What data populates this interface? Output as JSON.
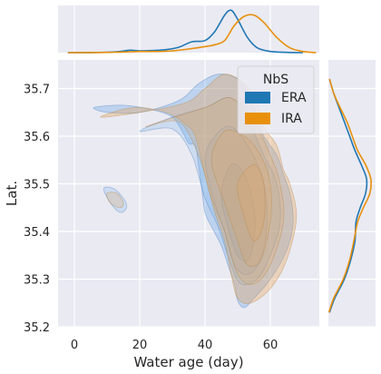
{
  "chart_data": {
    "type": "scatter",
    "subtype": "joint-kde",
    "xlabel": "Water age (day)",
    "ylabel": "Lat.",
    "xlim": [
      -5,
      75
    ],
    "ylim": [
      35.2,
      35.76
    ],
    "xticks": [
      0,
      20,
      40,
      60
    ],
    "yticks": [
      35.2,
      35.3,
      35.4,
      35.5,
      35.6,
      35.7
    ],
    "grid": true,
    "legend": {
      "title": "NbS",
      "placement": "top-right"
    },
    "series": [
      {
        "name": "ERA",
        "color": "#1f77b4",
        "marginal_x": {
          "x": [
            -2,
            5,
            10,
            14,
            17,
            20,
            24,
            28,
            32,
            36,
            40,
            43,
            46,
            48,
            50,
            53,
            56,
            60,
            65,
            70
          ],
          "density": [
            0,
            0.002,
            0.006,
            0.02,
            0.04,
            0.03,
            0.035,
            0.05,
            0.09,
            0.18,
            0.2,
            0.35,
            0.62,
            0.7,
            0.55,
            0.25,
            0.08,
            0.02,
            0.004,
            0
          ]
        },
        "marginal_y": {
          "y": [
            35.23,
            35.26,
            35.3,
            35.34,
            35.38,
            35.42,
            35.45,
            35.48,
            35.51,
            35.54,
            35.57,
            35.6,
            35.63,
            35.66,
            35.69,
            35.72
          ],
          "density": [
            0.02,
            0.12,
            0.3,
            0.42,
            0.5,
            0.52,
            0.6,
            0.7,
            0.72,
            0.62,
            0.5,
            0.4,
            0.3,
            0.2,
            0.1,
            0.02
          ]
        },
        "kde_levels": [
          {
            "level": 1,
            "points": [
              [
                6,
                35.66
              ],
              [
                15,
                35.665
              ],
              [
                24,
                35.655
              ],
              [
                30,
                35.64
              ],
              [
                33,
                35.61
              ],
              [
                35,
                35.585
              ],
              [
                37,
                35.58
              ],
              [
                38,
                35.54
              ],
              [
                39,
                35.49
              ],
              [
                40,
                35.44
              ],
              [
                42,
                35.41
              ],
              [
                45,
                35.37
              ],
              [
                47,
                35.33
              ],
              [
                49,
                35.29
              ],
              [
                50,
                35.255
              ],
              [
                52,
                35.24
              ],
              [
                55,
                35.26
              ],
              [
                60,
                35.3
              ],
              [
                65,
                35.36
              ],
              [
                67,
                35.42
              ],
              [
                66,
                35.48
              ],
              [
                64,
                35.52
              ],
              [
                62,
                35.56
              ],
              [
                58,
                35.6
              ],
              [
                56,
                35.64
              ],
              [
                54,
                35.68
              ],
              [
                50,
                35.72
              ],
              [
                44,
                35.73
              ],
              [
                38,
                35.71
              ],
              [
                32,
                35.675
              ],
              [
                20,
                35.65
              ],
              [
                10,
                35.65
              ]
            ]
          },
          {
            "level": 2,
            "points": [
              [
                9,
                35.49
              ],
              [
                12,
                35.49
              ],
              [
                15,
                35.47
              ],
              [
                16,
                35.45
              ],
              [
                14,
                35.44
              ],
              [
                11,
                35.46
              ]
            ]
          },
          {
            "level": 3,
            "points": [
              [
                20,
                35.61
              ],
              [
                30,
                35.615
              ],
              [
                36,
                35.56
              ],
              [
                40,
                35.47
              ],
              [
                44,
                35.41
              ],
              [
                48,
                35.33
              ],
              [
                51,
                35.29
              ],
              [
                56,
                35.3
              ],
              [
                60,
                35.35
              ],
              [
                63,
                35.42
              ],
              [
                62,
                35.5
              ],
              [
                58,
                35.56
              ],
              [
                54,
                35.62
              ],
              [
                48,
                35.68
              ],
              [
                40,
                35.66
              ],
              [
                30,
                35.64
              ]
            ]
          },
          {
            "level": 4,
            "points": [
              [
                40,
                35.55
              ],
              [
                43,
                35.46
              ],
              [
                46,
                35.4
              ],
              [
                49,
                35.33
              ],
              [
                53,
                35.31
              ],
              [
                57,
                35.34
              ],
              [
                59,
                35.42
              ],
              [
                58,
                35.5
              ],
              [
                54,
                35.57
              ],
              [
                48,
                35.62
              ],
              [
                43,
                35.6
              ]
            ]
          },
          {
            "level": 5,
            "points": [
              [
                45,
                35.48
              ],
              [
                47,
                35.41
              ],
              [
                50,
                35.35
              ],
              [
                53,
                35.34
              ],
              [
                55,
                35.38
              ],
              [
                55,
                35.45
              ],
              [
                52,
                35.52
              ],
              [
                48,
                35.54
              ]
            ]
          }
        ]
      },
      {
        "name": "IRA",
        "color": "#e8900c",
        "marginal_x": {
          "x": [
            -2,
            5,
            10,
            15,
            20,
            25,
            30,
            35,
            40,
            43,
            46,
            49,
            52,
            55,
            58,
            62,
            66,
            70,
            74
          ],
          "density": [
            0,
            0.002,
            0.005,
            0.01,
            0.02,
            0.02,
            0.03,
            0.06,
            0.1,
            0.13,
            0.2,
            0.45,
            0.6,
            0.62,
            0.5,
            0.25,
            0.08,
            0.02,
            0
          ]
        },
        "marginal_y": {
          "y": [
            35.23,
            35.26,
            35.3,
            35.34,
            35.38,
            35.42,
            35.45,
            35.48,
            35.51,
            35.54,
            35.57,
            35.6,
            35.63,
            35.66,
            35.69,
            35.72
          ],
          "density": [
            0.01,
            0.1,
            0.28,
            0.4,
            0.48,
            0.55,
            0.66,
            0.78,
            0.8,
            0.7,
            0.55,
            0.45,
            0.35,
            0.22,
            0.1,
            0.02
          ]
        },
        "kde_levels": [
          {
            "level": 1,
            "points": [
              [
                8,
                35.64
              ],
              [
                18,
                35.66
              ],
              [
                28,
                35.65
              ],
              [
                34,
                35.625
              ],
              [
                37,
                35.6
              ],
              [
                40,
                35.52
              ],
              [
                43,
                35.44
              ],
              [
                46,
                35.38
              ],
              [
                48,
                35.31
              ],
              [
                50,
                35.26
              ],
              [
                54,
                35.25
              ],
              [
                60,
                35.28
              ],
              [
                65,
                35.34
              ],
              [
                68,
                35.43
              ],
              [
                66,
                35.5
              ],
              [
                64,
                35.53
              ],
              [
                62,
                35.58
              ],
              [
                58,
                35.62
              ],
              [
                56,
                35.67
              ],
              [
                52,
                35.71
              ],
              [
                46,
                35.73
              ],
              [
                40,
                35.7
              ],
              [
                34,
                35.67
              ],
              [
                20,
                35.65
              ]
            ]
          },
          {
            "level": 2,
            "points": [
              [
                10,
                35.48
              ],
              [
                13,
                35.48
              ],
              [
                15,
                35.46
              ],
              [
                14,
                35.45
              ],
              [
                11,
                35.46
              ]
            ]
          },
          {
            "level": 3,
            "points": [
              [
                22,
                35.62
              ],
              [
                32,
                35.63
              ],
              [
                38,
                35.56
              ],
              [
                42,
                35.47
              ],
              [
                46,
                35.4
              ],
              [
                50,
                35.31
              ],
              [
                55,
                35.29
              ],
              [
                60,
                35.33
              ],
              [
                64,
                35.42
              ],
              [
                63,
                35.5
              ],
              [
                60,
                35.56
              ],
              [
                55,
                35.63
              ],
              [
                48,
                35.68
              ],
              [
                40,
                35.66
              ]
            ]
          },
          {
            "level": 4,
            "points": [
              [
                42,
                35.55
              ],
              [
                46,
                35.46
              ],
              [
                50,
                35.38
              ],
              [
                53,
                35.33
              ],
              [
                57,
                35.34
              ],
              [
                60,
                35.42
              ],
              [
                60,
                35.5
              ],
              [
                57,
                35.56
              ],
              [
                52,
                35.6
              ],
              [
                46,
                35.61
              ]
            ]
          },
          {
            "level": 5,
            "points": [
              [
                50,
                35.5
              ],
              [
                52,
                35.43
              ],
              [
                55,
                35.38
              ],
              [
                58,
                35.42
              ],
              [
                58,
                35.5
              ],
              [
                55,
                35.54
              ]
            ]
          }
        ]
      }
    ]
  }
}
